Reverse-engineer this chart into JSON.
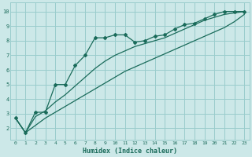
{
  "xlabel": "Humidex (Indice chaleur)",
  "bg_color": "#cce8e8",
  "grid_color": "#99cccc",
  "line_color": "#1a6b5a",
  "text_color": "#1a6b5a",
  "xlim": [
    -0.5,
    23.5
  ],
  "ylim": [
    1.2,
    10.6
  ],
  "xticks": [
    0,
    1,
    2,
    3,
    4,
    5,
    6,
    7,
    8,
    9,
    10,
    11,
    12,
    13,
    14,
    15,
    16,
    17,
    18,
    19,
    20,
    21,
    22,
    23
  ],
  "yticks": [
    2,
    3,
    4,
    5,
    6,
    7,
    8,
    9,
    10
  ],
  "series_main_x": [
    0,
    1,
    2,
    3,
    4,
    5,
    6,
    7,
    8,
    9,
    10,
    11,
    12,
    13,
    14,
    15,
    16,
    17,
    18,
    19,
    20,
    21,
    22,
    23
  ],
  "series_main_y": [
    2.7,
    1.7,
    3.1,
    3.1,
    5.0,
    5.0,
    6.3,
    7.0,
    8.2,
    8.2,
    8.4,
    8.4,
    7.9,
    8.0,
    8.3,
    8.4,
    8.8,
    9.1,
    9.2,
    9.5,
    9.8,
    10.0,
    10.0,
    10.0
  ],
  "series_low_x": [
    0,
    1,
    2,
    3,
    4,
    5,
    6,
    7,
    8,
    9,
    10,
    11,
    12,
    13,
    14,
    15,
    16,
    17,
    18,
    19,
    20,
    21,
    22,
    23
  ],
  "series_low_y": [
    2.7,
    1.7,
    2.2,
    2.7,
    3.1,
    3.5,
    3.9,
    4.3,
    4.7,
    5.1,
    5.5,
    5.9,
    6.2,
    6.5,
    6.8,
    7.1,
    7.4,
    7.7,
    8.0,
    8.3,
    8.6,
    8.9,
    9.3,
    9.8
  ],
  "series_high_x": [
    0,
    1,
    2,
    3,
    4,
    5,
    6,
    7,
    8,
    9,
    10,
    11,
    12,
    13,
    14,
    15,
    16,
    17,
    18,
    19,
    20,
    21,
    22,
    23
  ],
  "series_high_y": [
    2.7,
    1.7,
    2.8,
    3.2,
    3.8,
    4.3,
    4.9,
    5.5,
    6.1,
    6.6,
    7.0,
    7.3,
    7.6,
    7.8,
    8.0,
    8.2,
    8.5,
    8.8,
    9.1,
    9.4,
    9.6,
    9.8,
    9.9,
    10.0
  ]
}
